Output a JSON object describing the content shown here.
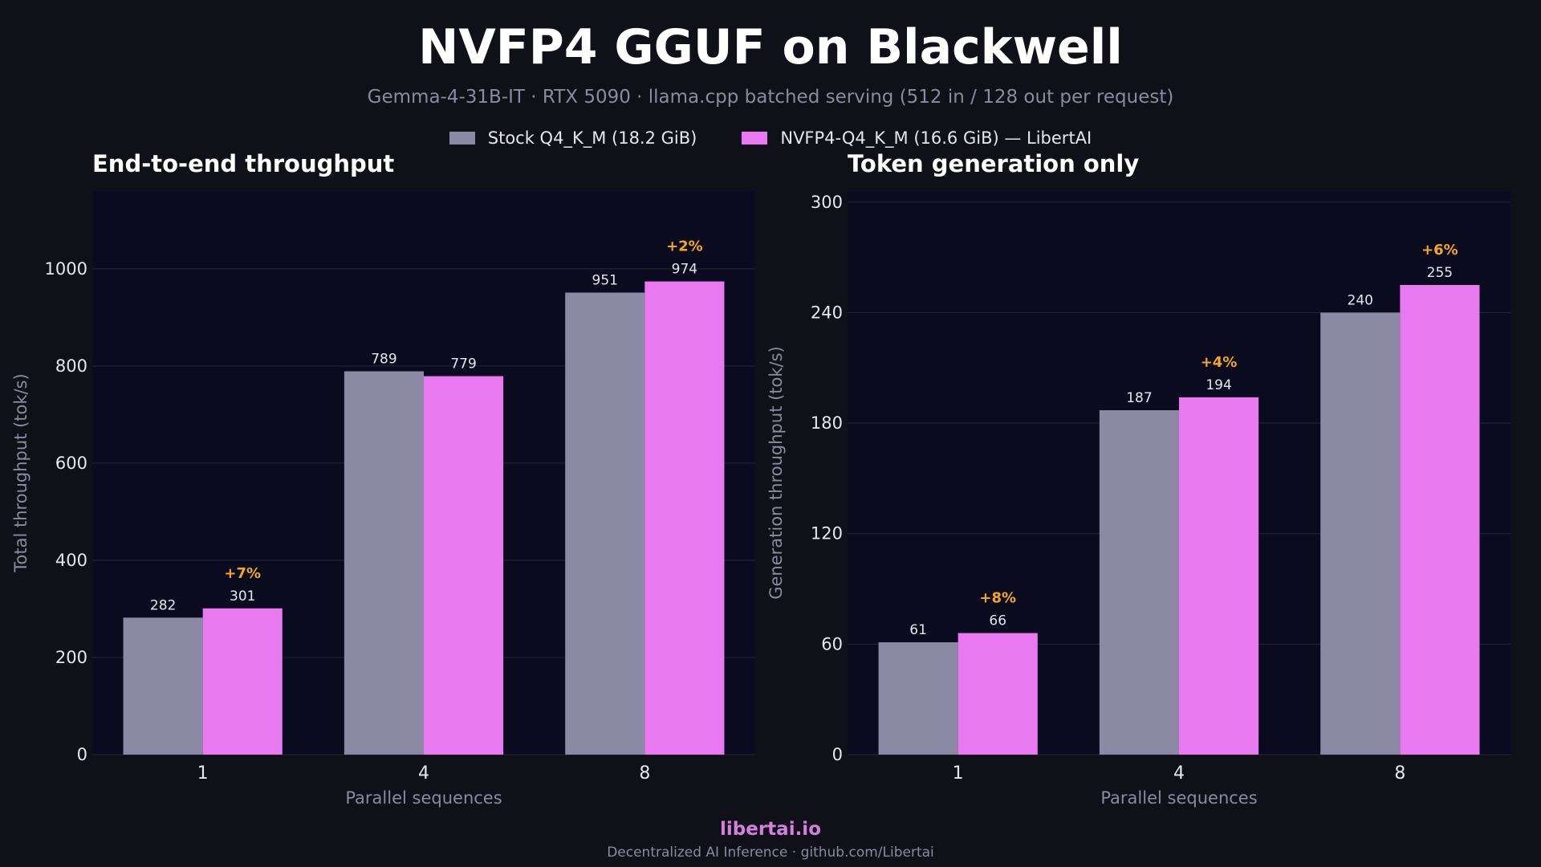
{
  "title": "NVFP4 GGUF on Blackwell",
  "subtitle": "Gemma-4-31B-IT  ·  RTX 5090  ·  llama.cpp batched serving (512 in / 128 out per request)",
  "legend": [
    {
      "label": "Stock Q4_K_M (18.2 GiB)",
      "color": "#8b89a3"
    },
    {
      "label": "NVFP4-Q4_K_M (16.6 GiB) — LibertAI",
      "color": "#e879f0"
    }
  ],
  "footer": {
    "brand": "libertai.io",
    "sub": "Decentralized AI Inference  ·  github.com/Libertai"
  },
  "colors": {
    "background": "#101018",
    "plot_background": "#0b0b1f",
    "stock": "#8b89a3",
    "nvfp4": "#e879f0",
    "gain": "#f5a623"
  },
  "chart_data": [
    {
      "type": "bar",
      "title": "End-to-end throughput",
      "xlabel": "Parallel sequences",
      "ylabel": "Total throughput (tok/s)",
      "categories": [
        "1",
        "4",
        "8"
      ],
      "ylim": [
        0,
        1160
      ],
      "yticks": [
        0,
        200,
        400,
        600,
        800,
        1000
      ],
      "grid": true,
      "series": [
        {
          "name": "Stock Q4_K_M (18.2 GiB)",
          "values": [
            282,
            789,
            951
          ]
        },
        {
          "name": "NVFP4-Q4_K_M (16.6 GiB) — LibertAI",
          "values": [
            301,
            779,
            974
          ]
        }
      ],
      "gains": [
        "+7%",
        "",
        "+2%"
      ]
    },
    {
      "type": "bar",
      "title": "Token generation only",
      "xlabel": "Parallel sequences",
      "ylabel": "Generation throughput (tok/s)",
      "categories": [
        "1",
        "4",
        "8"
      ],
      "ylim": [
        0,
        306
      ],
      "yticks": [
        0,
        60,
        120,
        180,
        240,
        300
      ],
      "grid": true,
      "series": [
        {
          "name": "Stock Q4_K_M (18.2 GiB)",
          "values": [
            61,
            187,
            240
          ]
        },
        {
          "name": "NVFP4-Q4_K_M (16.6 GiB) — LibertAI",
          "values": [
            66,
            194,
            255
          ]
        }
      ],
      "gains": [
        "+8%",
        "+4%",
        "+6%"
      ]
    }
  ]
}
